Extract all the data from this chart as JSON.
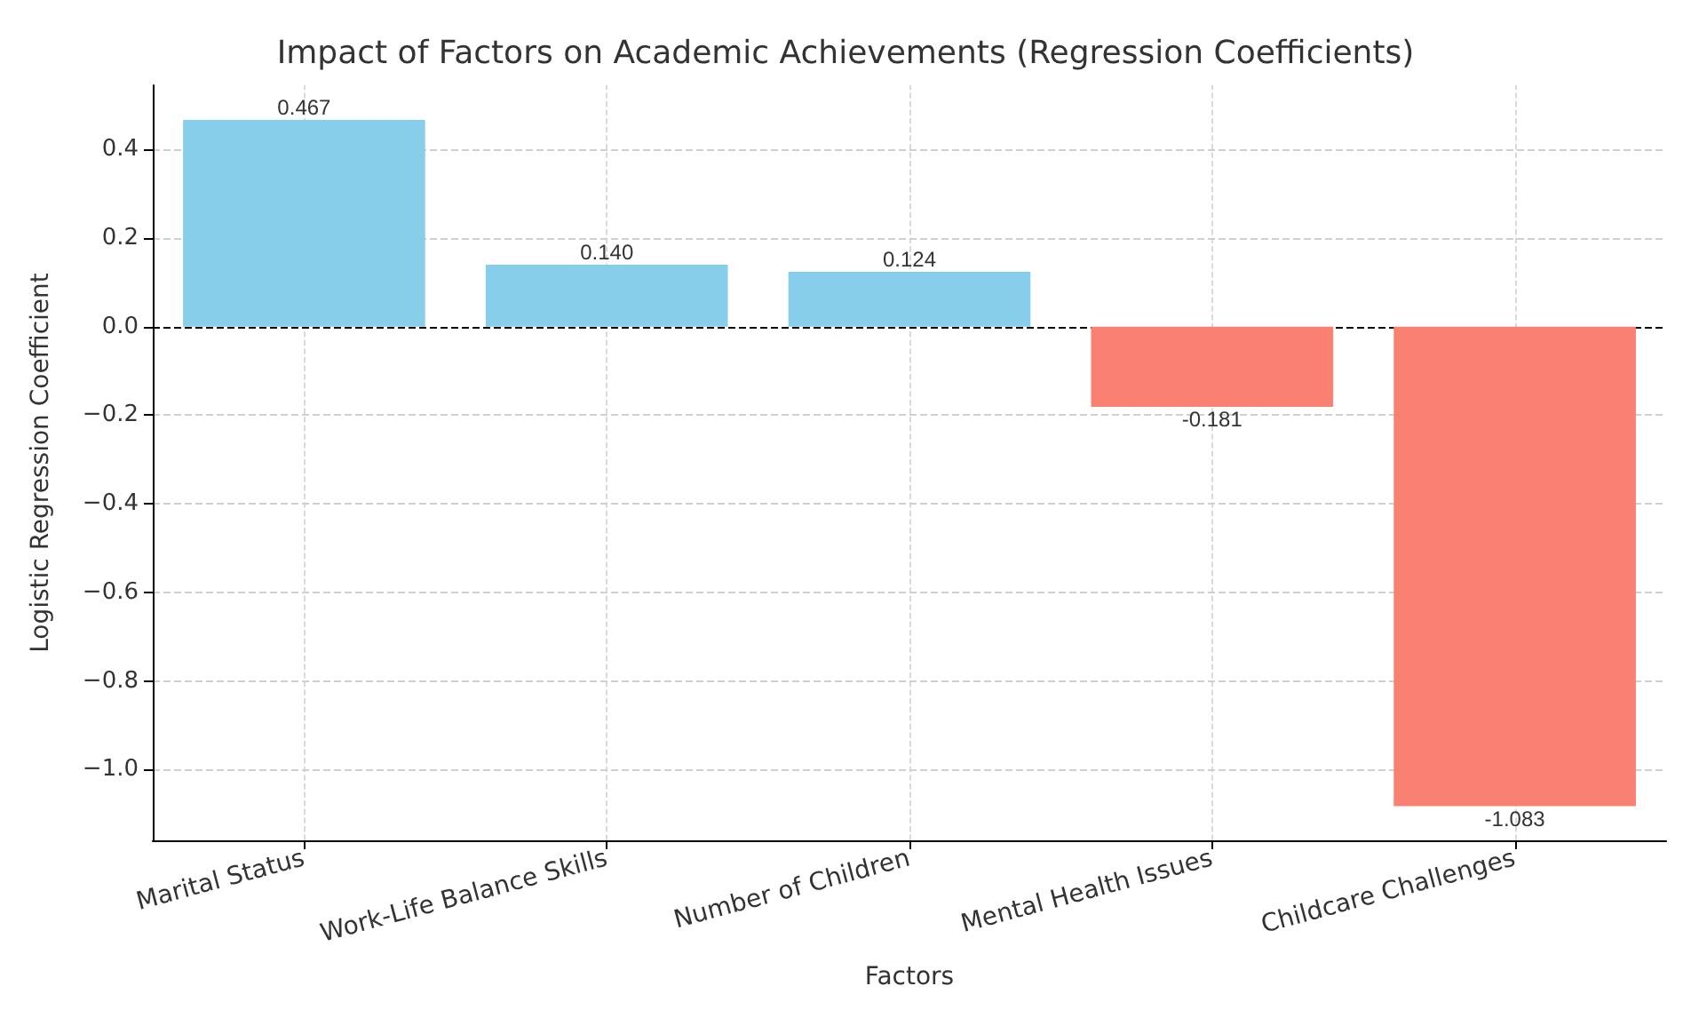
{
  "chart_data": {
    "type": "bar",
    "title": "Impact of Factors on Academic Achievements (Regression Coefficients)",
    "xlabel": "Factors",
    "ylabel": "Logistic Regression Coefficient",
    "categories": [
      "Marital Status",
      "Work-Life Balance Skills",
      "Number of Children",
      "Mental Health Issues",
      "Childcare Challenges"
    ],
    "values": [
      0.467,
      0.14,
      0.124,
      -0.181,
      -1.083
    ],
    "value_labels": [
      "0.467",
      "0.140",
      "0.124",
      "-0.181",
      "-1.083"
    ],
    "colors": [
      "#87ceeb",
      "#87ceeb",
      "#87ceeb",
      "#fa8072",
      "#fa8072"
    ],
    "ylim": [
      -1.16,
      0.545
    ],
    "yticks": [
      {
        "value": -1.0,
        "label": "−1.0"
      },
      {
        "value": -0.8,
        "label": "−0.8"
      },
      {
        "value": -0.6,
        "label": "−0.6"
      },
      {
        "value": -0.4,
        "label": "−0.4"
      },
      {
        "value": -0.2,
        "label": "−0.2"
      },
      {
        "value": 0,
        "label": "0.0"
      },
      {
        "value": 0.2,
        "label": "0.2"
      },
      {
        "value": 0.4,
        "label": "0.4"
      }
    ],
    "ref_lines": [
      {
        "axis": "y",
        "value": 0,
        "color": "#000000",
        "line_style": "dashed"
      }
    ],
    "grid": true
  }
}
